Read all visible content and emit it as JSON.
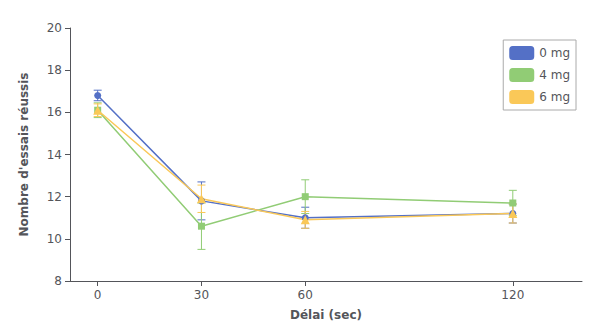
{
  "chart_data": {
    "type": "line",
    "xlabel": "Délai (sec)",
    "ylabel": "Nombre d'essais réussis",
    "x": [
      0,
      30,
      60,
      120
    ],
    "series": [
      {
        "name": "0 mg",
        "values": [
          16.8,
          11.8,
          11.0,
          11.2
        ],
        "yerr": [
          0.25,
          0.9,
          0.5,
          0.45
        ],
        "marker": "circle"
      },
      {
        "name": "4 mg",
        "values": [
          16.1,
          10.6,
          12.0,
          11.7
        ],
        "yerr": [
          0.35,
          1.1,
          0.8,
          0.6
        ],
        "marker": "square"
      },
      {
        "name": "6 mg",
        "values": [
          16.1,
          11.9,
          10.9,
          11.2
        ],
        "yerr": [
          0.3,
          0.65,
          0.4,
          0.45
        ],
        "marker": "triangle"
      }
    ],
    "xlim": [
      -8,
      140
    ],
    "ylim": [
      8,
      20
    ],
    "xticks": [
      0,
      30,
      60,
      120
    ],
    "yticks": [
      8,
      10,
      12,
      14,
      16,
      18,
      20
    ],
    "grid": false,
    "legend": "upper right"
  }
}
